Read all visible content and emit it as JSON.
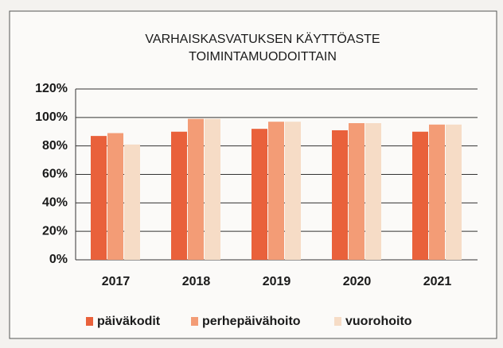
{
  "chart_data": {
    "type": "bar",
    "title": [
      "VARHAISKASVATUKSEN KÄYTTÖASTE",
      "TOIMINTAMUODOITTAIN"
    ],
    "categories": [
      "2017",
      "2018",
      "2019",
      "2020",
      "2021"
    ],
    "series": [
      {
        "name": "päiväkodit",
        "color": "#e9613b",
        "values": [
          87,
          90,
          92,
          91,
          90
        ]
      },
      {
        "name": "perhepäivähoito",
        "color": "#f39c76",
        "values": [
          89,
          99,
          97,
          96,
          95
        ]
      },
      {
        "name": "vuorohoito",
        "color": "#f6dcc6",
        "values": [
          81,
          99,
          97,
          96,
          95
        ]
      }
    ],
    "ylim": [
      0,
      120
    ],
    "yticks": [
      {
        "value": 0,
        "label": "0%"
      },
      {
        "value": 20,
        "label": "20%"
      },
      {
        "value": 40,
        "label": "40%"
      },
      {
        "value": 60,
        "label": "60%"
      },
      {
        "value": 80,
        "label": "80%"
      },
      {
        "value": 100,
        "label": "100%"
      },
      {
        "value": 120,
        "label": "120%"
      }
    ],
    "grid": true
  }
}
